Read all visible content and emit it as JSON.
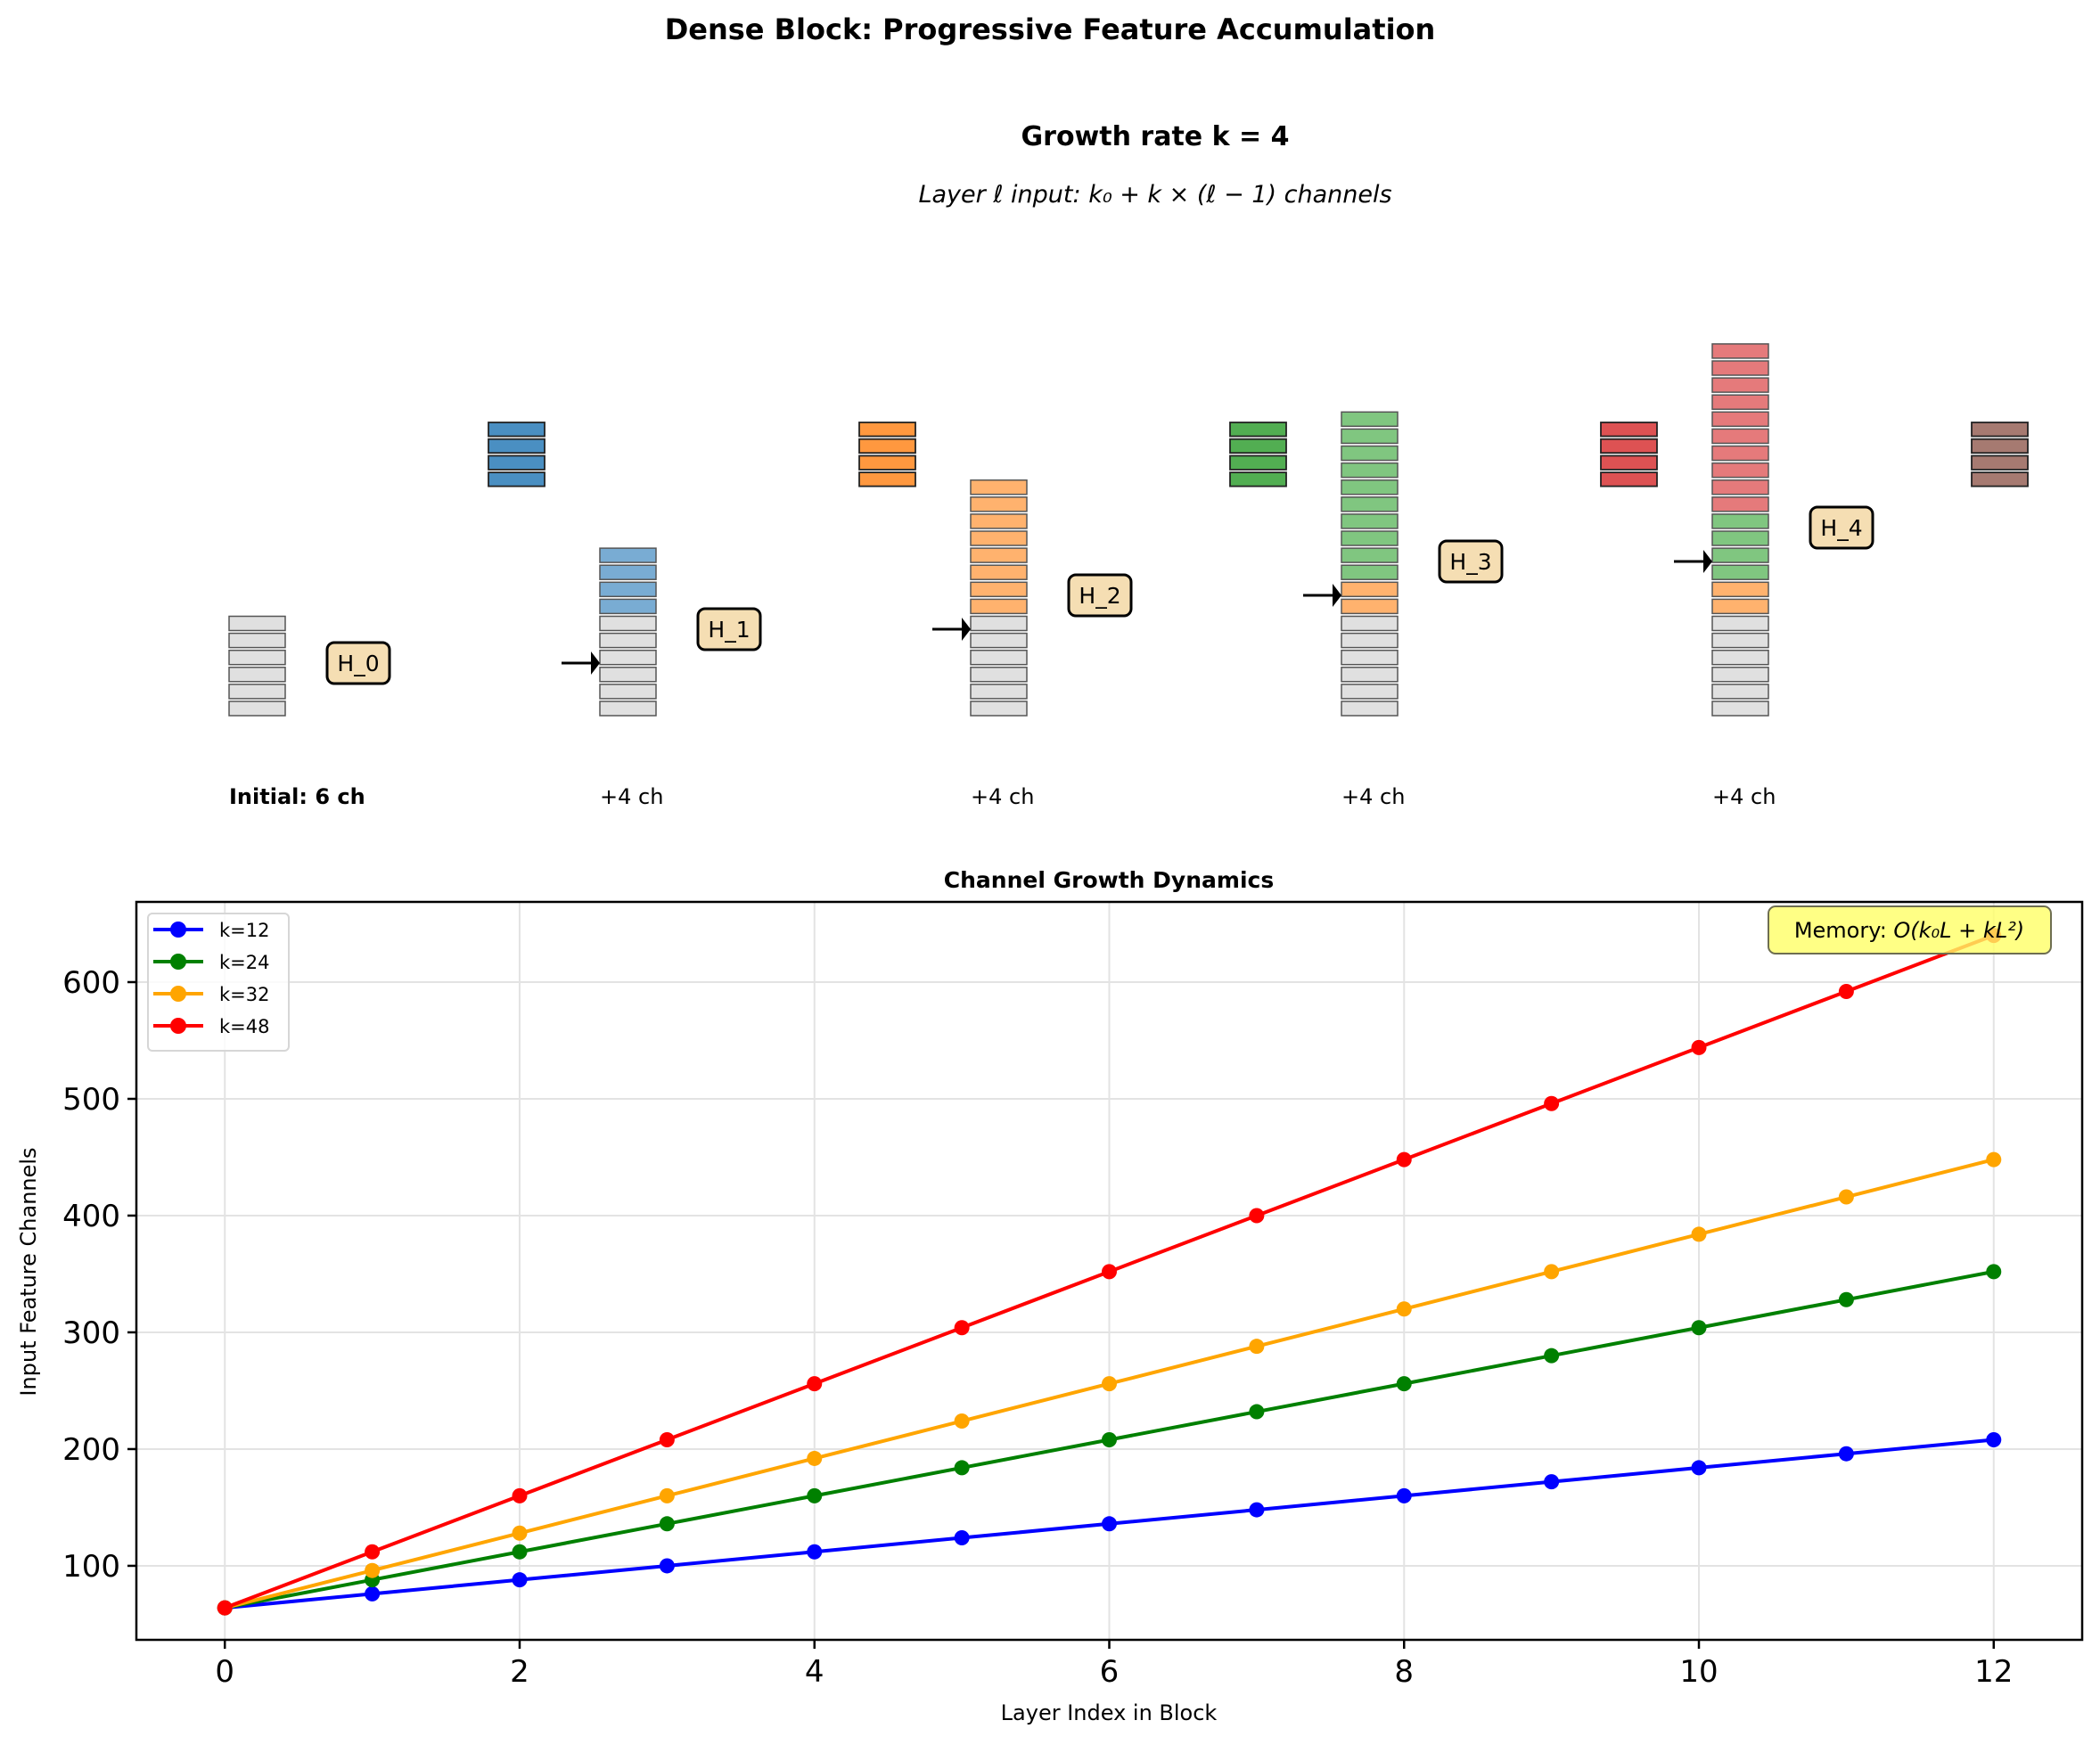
{
  "figure": {
    "title": "Dense Block: Progressive Feature Accumulation"
  },
  "diagram": {
    "heading": "Growth rate k = 4",
    "formula_prefix": "Layer ℓ input: ",
    "formula_math": "k₀ + k × (ℓ − 1)",
    "formula_suffix": " channels",
    "initial_channels": 6,
    "growth_rate": 4,
    "stacks": [
      {
        "label": "H_0",
        "caption": "Initial: 6 ch",
        "caption_bold": true,
        "segments": [
          {
            "color": "#e0e0e0",
            "count": 6
          }
        ]
      },
      {
        "label": "H_1",
        "caption": "+4 ch",
        "caption_bold": false,
        "segments": [
          {
            "color": "#e0e0e0",
            "count": 6
          },
          {
            "color": "#79acd3",
            "count": 4
          }
        ]
      },
      {
        "label": "H_2",
        "caption": "+4 ch",
        "caption_bold": false,
        "segments": [
          {
            "color": "#e0e0e0",
            "count": 6
          },
          {
            "color": "#ffb26e",
            "count": 8
          }
        ]
      },
      {
        "label": "H_3",
        "caption": "+4 ch",
        "caption_bold": false,
        "segments": [
          {
            "color": "#e0e0e0",
            "count": 6
          },
          {
            "color": "#ffb26e",
            "count": 2
          },
          {
            "color": "#80c680",
            "count": 10
          }
        ]
      },
      {
        "label": "H_4",
        "caption": "+4 ch",
        "caption_bold": false,
        "segments": [
          {
            "color": "#e0e0e0",
            "count": 6
          },
          {
            "color": "#ffb26e",
            "count": 2
          },
          {
            "color": "#80c680",
            "count": 4
          },
          {
            "color": "#e57a7b",
            "count": 10
          }
        ]
      }
    ],
    "new_features": [
      {
        "color": "#4a8fc2",
        "count": 4
      },
      {
        "color": "#ff983f",
        "count": 4
      },
      {
        "color": "#52ae52",
        "count": 4
      },
      {
        "color": "#dd5253",
        "count": 4
      },
      {
        "color": "#a67a71",
        "count": 4
      }
    ],
    "label_box_fill": "#f5deb3"
  },
  "chart_data": {
    "type": "line",
    "title": "Channel Growth Dynamics",
    "xlabel": "Layer Index in Block",
    "ylabel": "Input Feature Channels",
    "x": [
      0,
      1,
      2,
      3,
      4,
      5,
      6,
      7,
      8,
      9,
      10,
      11,
      12
    ],
    "xlim": [
      -0.6,
      12.6
    ],
    "ylim": [
      36.6,
      668.7
    ],
    "xticks": [
      0,
      2,
      4,
      6,
      8,
      10,
      12
    ],
    "yticks": [
      100,
      200,
      300,
      400,
      500,
      600
    ],
    "grid": true,
    "legend_position": "upper-left",
    "series": [
      {
        "name": "k=12",
        "color": "#0000ff",
        "values": [
          64,
          76,
          88,
          100,
          112,
          124,
          136,
          148,
          160,
          172,
          184,
          196,
          208
        ]
      },
      {
        "name": "k=24",
        "color": "#008000",
        "values": [
          64,
          88,
          112,
          136,
          160,
          184,
          208,
          232,
          256,
          280,
          304,
          328,
          352
        ]
      },
      {
        "name": "k=32",
        "color": "#ffa500",
        "values": [
          64,
          96,
          128,
          160,
          192,
          224,
          256,
          288,
          320,
          352,
          384,
          416,
          448
        ]
      },
      {
        "name": "k=48",
        "color": "#ff0000",
        "values": [
          64,
          112,
          160,
          208,
          256,
          304,
          352,
          400,
          448,
          496,
          544,
          592,
          640
        ]
      }
    ],
    "annotation": {
      "prefix": "Memory: ",
      "math": "O(k₀L + kL²)",
      "position": "upper-right",
      "fill": "#ffff66"
    }
  }
}
